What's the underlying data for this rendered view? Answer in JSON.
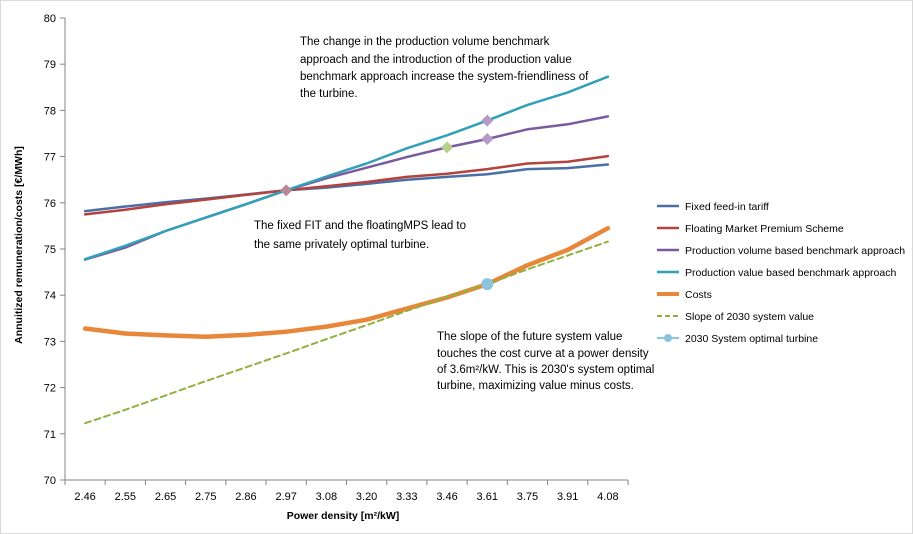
{
  "chart_data": {
    "type": "line",
    "xlabel": "Power density [m²/kW]",
    "ylabel": "Annuitized remuneration/costs [€/MWh]",
    "categories": [
      "2.46",
      "2.55",
      "2.65",
      "2.75",
      "2.86",
      "2.97",
      "3.08",
      "3.20",
      "3.33",
      "3.46",
      "3.61",
      "3.75",
      "3.91",
      "4.08"
    ],
    "ylim": [
      70,
      80
    ],
    "yticks": [
      "70",
      "71",
      "72",
      "73",
      "74",
      "75",
      "76",
      "77",
      "78",
      "79",
      "80"
    ],
    "grid": false,
    "legend_position": "right",
    "series": [
      {
        "name": "Fixed feed-in tariff",
        "color": "#4a6fa5",
        "width": 2.5,
        "dash": "",
        "values": [
          75.82,
          75.92,
          76.01,
          76.09,
          76.18,
          76.27,
          76.33,
          76.41,
          76.5,
          76.56,
          76.62,
          76.73,
          76.75,
          76.83
        ]
      },
      {
        "name": "Floating Market Premium Scheme",
        "color": "#b5423c",
        "width": 2.5,
        "dash": "",
        "values": [
          75.75,
          75.85,
          75.97,
          76.07,
          76.17,
          76.27,
          76.36,
          76.45,
          76.56,
          76.63,
          76.73,
          76.85,
          76.89,
          77.01
        ]
      },
      {
        "name": "Production volume based benchmark approach",
        "color": "#7b5ba0",
        "width": 2.5,
        "dash": "",
        "values": [
          74.77,
          75.03,
          75.39,
          75.68,
          75.97,
          76.27,
          76.53,
          76.76,
          76.99,
          77.2,
          77.38,
          77.59,
          77.7,
          77.87
        ],
        "marker": {
          "index": 10,
          "shape": "diamond",
          "color": "#b49ac4"
        }
      },
      {
        "name": "Production value based benchmark approach",
        "color": "#31a0b8",
        "width": 2.5,
        "dash": "",
        "values": [
          74.78,
          75.07,
          75.39,
          75.68,
          75.97,
          76.27,
          76.57,
          76.85,
          77.18,
          77.46,
          77.78,
          78.12,
          78.39,
          78.73
        ],
        "marker": {
          "index": 10,
          "shape": "diamond",
          "color": "#b49ac4"
        }
      },
      {
        "name": "Costs",
        "color": "#e8873a",
        "width": 4.5,
        "dash": "",
        "values": [
          73.28,
          73.17,
          73.13,
          73.1,
          73.14,
          73.21,
          73.32,
          73.47,
          73.71,
          73.95,
          74.24,
          74.65,
          74.98,
          75.45
        ]
      },
      {
        "name": "Slope of 2030 system value",
        "color": "#8db33e",
        "width": 2,
        "dash": "6,4",
        "values": [
          71.23,
          71.52,
          71.83,
          72.14,
          72.44,
          72.74,
          73.05,
          73.35,
          73.66,
          73.96,
          74.24,
          74.56,
          74.86,
          75.16
        ]
      },
      {
        "name": "2030 System optimal turbine",
        "color": "#8cc4dd",
        "width": 0,
        "dash": "",
        "point": {
          "index": 10,
          "value": 74.24,
          "shape": "circle"
        }
      }
    ],
    "extra_markers": [
      {
        "shape": "diamond",
        "color": "#b5899a",
        "index": 5,
        "value": 76.27
      },
      {
        "shape": "diamond",
        "color": "#b5cf8d",
        "index": 9,
        "value": 77.2
      }
    ],
    "annotations": [
      {
        "lines": [
          "The change in the production volume benchmark",
          "approach and the introduction of the production value",
          "benchmark approach increase the system-friendliness of",
          "the turbine."
        ]
      },
      {
        "lines": [
          "The fixed FIT and the  floatingMPS lead to",
          "the same privately optimal turbine."
        ]
      },
      {
        "lines": [
          "The slope of the  future system value",
          "touches the cost curve at a power density",
          "of 3.6m²/kW. This is  2030's  system optimal",
          "turbine, maximizing value minus costs."
        ]
      }
    ]
  }
}
